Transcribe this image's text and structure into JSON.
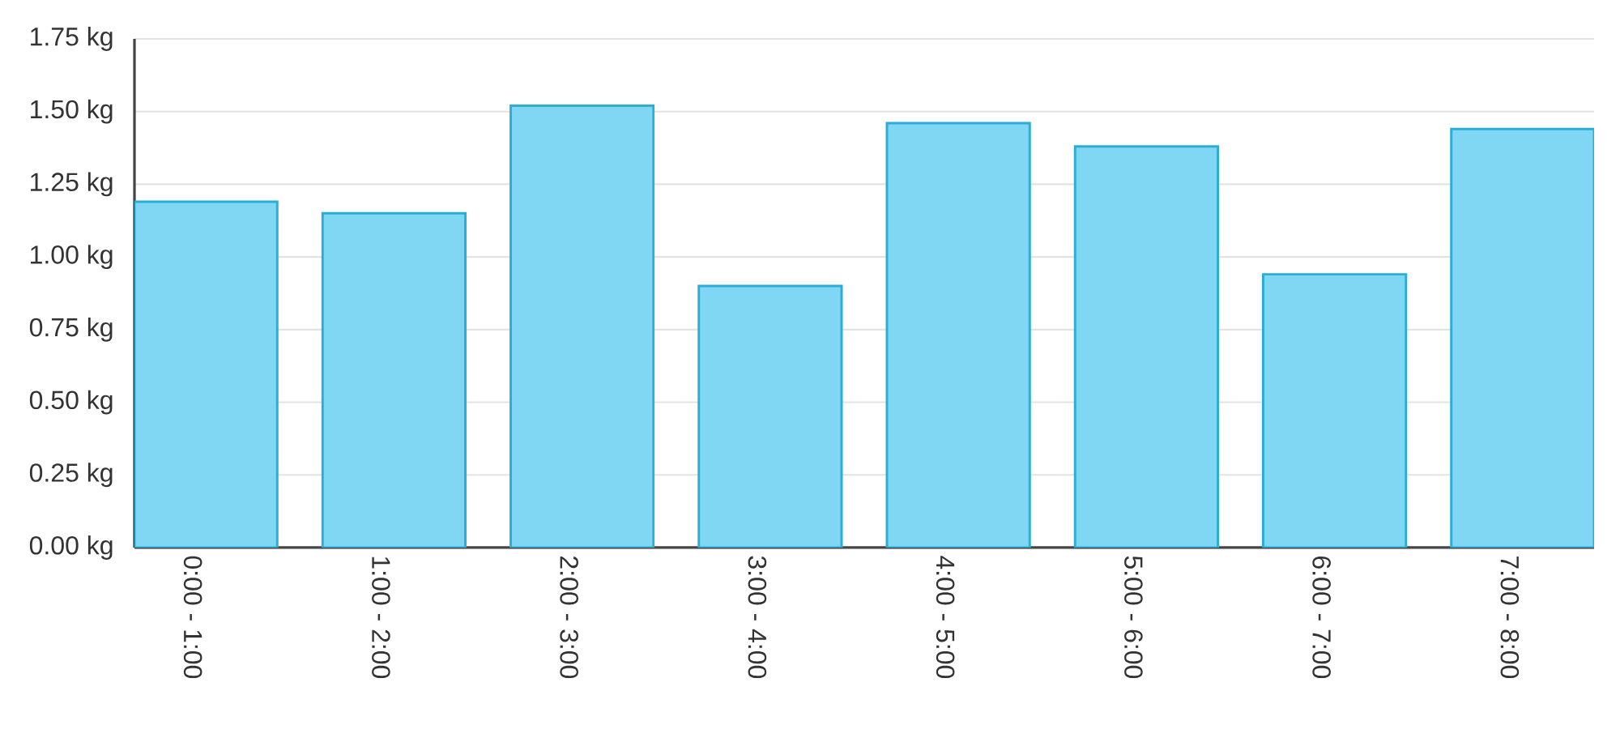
{
  "chart_data": {
    "type": "bar",
    "categories": [
      "0:00 - 1:00",
      "1:00 - 2:00",
      "2:00 - 3:00",
      "3:00 - 4:00",
      "4:00 - 5:00",
      "5:00 - 6:00",
      "6:00 - 7:00",
      "7:00 - 8:00"
    ],
    "values": [
      1.19,
      1.15,
      1.52,
      0.9,
      1.46,
      1.38,
      0.94,
      1.44
    ],
    "color": "#7fd7f3",
    "ylim": [
      0,
      1.75
    ],
    "yticks": [
      {
        "value": 0,
        "label": "0.00 kg"
      },
      {
        "value": 0.25,
        "label": "0.25 kg"
      },
      {
        "value": 0.5,
        "label": "0.50 kg"
      },
      {
        "value": 0.75,
        "label": "0.75 kg"
      },
      {
        "value": 1.0,
        "label": "1.00 kg"
      },
      {
        "value": 1.25,
        "label": "1.25 kg"
      },
      {
        "value": 1.5,
        "label": "1.50 kg"
      },
      {
        "value": 1.75,
        "label": "1.75 kg"
      }
    ],
    "grid": "y"
  }
}
